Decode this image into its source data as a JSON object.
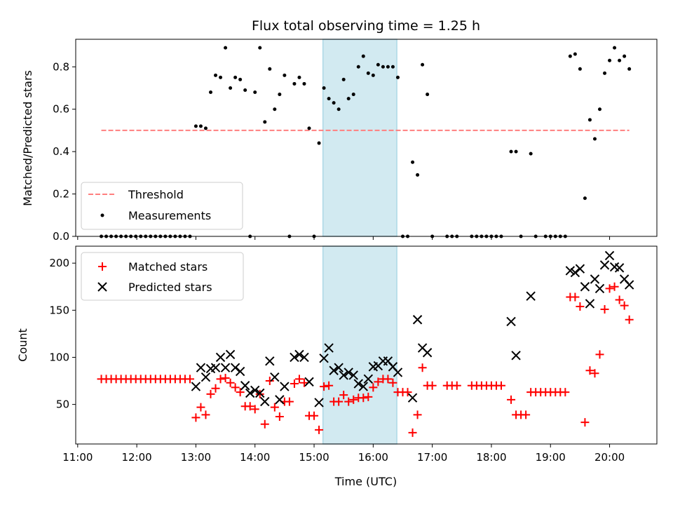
{
  "chart_data": {
    "title": "Flux total observing time = 1.25 h",
    "colors": {
      "threshold": "#ff7f7f",
      "measurements": "#000000",
      "matched": "#ff0000",
      "predicted": "#000000",
      "observing_window": "#add8e6"
    },
    "x_ticks": [
      "11:00",
      "12:00",
      "13:00",
      "14:00",
      "15:00",
      "16:00",
      "17:00",
      "18:00",
      "19:00",
      "20:00"
    ],
    "xlabel": "Time (UTC)",
    "xlim": [
      "10:58",
      "20:48"
    ],
    "observing_window": [
      "15:09",
      "16:24"
    ],
    "top": {
      "type": "scatter",
      "ylabel": "Matched/Predicted stars",
      "ylim": [
        0,
        0.93
      ],
      "y_ticks": [
        "0.0",
        "0.2",
        "0.4",
        "0.6",
        "0.8"
      ],
      "grid": false,
      "legend": "lower-left",
      "threshold": {
        "name": "Threshold",
        "y": 0.5,
        "x": [
          "11:24",
          "20:20"
        ],
        "style": "dashed"
      },
      "measurements": {
        "name": "Measurements",
        "points": [
          [
            "11:24",
            0
          ],
          [
            "11:29",
            0
          ],
          [
            "11:34",
            0
          ],
          [
            "11:39",
            0
          ],
          [
            "11:44",
            0
          ],
          [
            "11:49",
            0
          ],
          [
            "11:54",
            0
          ],
          [
            "11:59",
            0
          ],
          [
            "12:04",
            0
          ],
          [
            "12:09",
            0
          ],
          [
            "12:14",
            0
          ],
          [
            "12:19",
            0
          ],
          [
            "12:24",
            0
          ],
          [
            "12:29",
            0
          ],
          [
            "12:34",
            0
          ],
          [
            "12:39",
            0
          ],
          [
            "12:44",
            0
          ],
          [
            "12:49",
            0
          ],
          [
            "12:54",
            0
          ],
          [
            "13:00",
            0.52
          ],
          [
            "13:05",
            0.52
          ],
          [
            "13:10",
            0.51
          ],
          [
            "13:15",
            0.68
          ],
          [
            "13:20",
            0.76
          ],
          [
            "13:25",
            0.75
          ],
          [
            "13:30",
            0.89
          ],
          [
            "13:35",
            0.7
          ],
          [
            "13:40",
            0.75
          ],
          [
            "13:45",
            0.74
          ],
          [
            "13:50",
            0.69
          ],
          [
            "13:55",
            0
          ],
          [
            "14:00",
            0.68
          ],
          [
            "14:05",
            0.89
          ],
          [
            "14:10",
            0.54
          ],
          [
            "14:15",
            0.79
          ],
          [
            "14:20",
            0.6
          ],
          [
            "14:25",
            0.67
          ],
          [
            "14:30",
            0.76
          ],
          [
            "14:35",
            0
          ],
          [
            "14:40",
            0.72
          ],
          [
            "14:45",
            0.75
          ],
          [
            "14:50",
            0.72
          ],
          [
            "14:55",
            0.51
          ],
          [
            "15:00",
            0
          ],
          [
            "15:05",
            0.44
          ],
          [
            "15:10",
            0.7
          ],
          [
            "15:15",
            0.65
          ],
          [
            "15:20",
            0.63
          ],
          [
            "15:25",
            0.6
          ],
          [
            "15:30",
            0.74
          ],
          [
            "15:35",
            0.65
          ],
          [
            "15:40",
            0.67
          ],
          [
            "15:45",
            0.8
          ],
          [
            "15:50",
            0.85
          ],
          [
            "15:55",
            0.77
          ],
          [
            "16:00",
            0.76
          ],
          [
            "16:05",
            0.81
          ],
          [
            "16:10",
            0.8
          ],
          [
            "16:15",
            0.8
          ],
          [
            "16:20",
            0.8
          ],
          [
            "16:25",
            0.75
          ],
          [
            "16:30",
            0
          ],
          [
            "16:35",
            0
          ],
          [
            "16:40",
            0.35
          ],
          [
            "16:45",
            0.29
          ],
          [
            "16:50",
            0.81
          ],
          [
            "16:55",
            0.67
          ],
          [
            "17:00",
            0
          ],
          [
            "17:15",
            0
          ],
          [
            "17:20",
            0
          ],
          [
            "17:25",
            0
          ],
          [
            "17:40",
            0
          ],
          [
            "17:45",
            0
          ],
          [
            "17:50",
            0
          ],
          [
            "17:55",
            0
          ],
          [
            "18:00",
            0
          ],
          [
            "18:05",
            0
          ],
          [
            "18:10",
            0
          ],
          [
            "18:20",
            0.4
          ],
          [
            "18:25",
            0.4
          ],
          [
            "18:30",
            0
          ],
          [
            "18:40",
            0.39
          ],
          [
            "18:45",
            0
          ],
          [
            "18:55",
            0
          ],
          [
            "19:00",
            0
          ],
          [
            "19:05",
            0
          ],
          [
            "19:10",
            0
          ],
          [
            "19:15",
            0
          ],
          [
            "19:20",
            0.85
          ],
          [
            "19:25",
            0.86
          ],
          [
            "19:30",
            0.79
          ],
          [
            "19:35",
            0.18
          ],
          [
            "19:40",
            0.55
          ],
          [
            "19:45",
            0.46
          ],
          [
            "19:50",
            0.6
          ],
          [
            "19:55",
            0.77
          ],
          [
            "20:00",
            0.83
          ],
          [
            "20:05",
            0.89
          ],
          [
            "20:10",
            0.83
          ],
          [
            "20:15",
            0.85
          ],
          [
            "20:20",
            0.79
          ]
        ]
      }
    },
    "bottom": {
      "type": "scatter",
      "ylabel": "Count",
      "ylim": [
        8,
        218
      ],
      "y_ticks": [
        "50",
        "100",
        "150",
        "200"
      ],
      "grid": false,
      "legend": "upper-left",
      "matched": {
        "name": "Matched stars",
        "points": [
          [
            "11:24",
            77
          ],
          [
            "11:29",
            77
          ],
          [
            "11:34",
            77
          ],
          [
            "11:39",
            77
          ],
          [
            "11:44",
            77
          ],
          [
            "11:49",
            77
          ],
          [
            "11:54",
            77
          ],
          [
            "11:59",
            77
          ],
          [
            "12:04",
            77
          ],
          [
            "12:09",
            77
          ],
          [
            "12:14",
            77
          ],
          [
            "12:19",
            77
          ],
          [
            "12:24",
            77
          ],
          [
            "12:29",
            77
          ],
          [
            "12:34",
            77
          ],
          [
            "12:39",
            77
          ],
          [
            "12:44",
            77
          ],
          [
            "12:49",
            77
          ],
          [
            "12:54",
            77
          ],
          [
            "13:00",
            36
          ],
          [
            "13:05",
            47
          ],
          [
            "13:10",
            39
          ],
          [
            "13:15",
            61
          ],
          [
            "13:20",
            67
          ],
          [
            "13:25",
            77
          ],
          [
            "13:30",
            78
          ],
          [
            "13:35",
            73
          ],
          [
            "13:40",
            68
          ],
          [
            "13:45",
            63
          ],
          [
            "13:50",
            48
          ],
          [
            "13:55",
            48
          ],
          [
            "14:00",
            45
          ],
          [
            "14:05",
            61
          ],
          [
            "14:10",
            29
          ],
          [
            "14:15",
            75
          ],
          [
            "14:20",
            47
          ],
          [
            "14:25",
            37
          ],
          [
            "14:30",
            53
          ],
          [
            "14:35",
            53
          ],
          [
            "14:40",
            72
          ],
          [
            "14:45",
            77
          ],
          [
            "14:50",
            73
          ],
          [
            "14:55",
            38
          ],
          [
            "15:00",
            38
          ],
          [
            "15:05",
            23
          ],
          [
            "15:10",
            69
          ],
          [
            "15:15",
            70
          ],
          [
            "15:20",
            53
          ],
          [
            "15:25",
            53
          ],
          [
            "15:30",
            60
          ],
          [
            "15:35",
            53
          ],
          [
            "15:40",
            55
          ],
          [
            "15:45",
            57
          ],
          [
            "15:50",
            57
          ],
          [
            "15:55",
            58
          ],
          [
            "16:00",
            68
          ],
          [
            "16:05",
            74
          ],
          [
            "16:10",
            77
          ],
          [
            "16:15",
            77
          ],
          [
            "16:20",
            73
          ],
          [
            "16:25",
            63
          ],
          [
            "16:30",
            63
          ],
          [
            "16:35",
            63
          ],
          [
            "16:40",
            20
          ],
          [
            "16:45",
            39
          ],
          [
            "16:50",
            89
          ],
          [
            "16:55",
            70
          ],
          [
            "17:00",
            70
          ],
          [
            "17:15",
            70
          ],
          [
            "17:20",
            70
          ],
          [
            "17:25",
            70
          ],
          [
            "17:40",
            70
          ],
          [
            "17:45",
            70
          ],
          [
            "17:50",
            70
          ],
          [
            "17:55",
            70
          ],
          [
            "18:00",
            70
          ],
          [
            "18:05",
            70
          ],
          [
            "18:10",
            70
          ],
          [
            "18:20",
            55
          ],
          [
            "18:25",
            39
          ],
          [
            "18:30",
            39
          ],
          [
            "18:35",
            39
          ],
          [
            "18:40",
            63
          ],
          [
            "18:45",
            63
          ],
          [
            "18:50",
            63
          ],
          [
            "18:55",
            63
          ],
          [
            "19:00",
            63
          ],
          [
            "19:05",
            63
          ],
          [
            "19:10",
            63
          ],
          [
            "19:15",
            63
          ],
          [
            "19:20",
            164
          ],
          [
            "19:25",
            164
          ],
          [
            "19:30",
            154
          ],
          [
            "19:35",
            31
          ],
          [
            "19:40",
            86
          ],
          [
            "19:45",
            83
          ],
          [
            "19:50",
            103
          ],
          [
            "19:55",
            151
          ],
          [
            "20:00",
            173
          ],
          [
            "20:05",
            175
          ],
          [
            "20:10",
            161
          ],
          [
            "20:15",
            155
          ],
          [
            "20:20",
            140
          ]
        ]
      },
      "predicted": {
        "name": "Predicted stars",
        "points": [
          [
            "13:00",
            69
          ],
          [
            "13:05",
            89
          ],
          [
            "13:10",
            79
          ],
          [
            "13:15",
            88
          ],
          [
            "13:20",
            89
          ],
          [
            "13:25",
            100
          ],
          [
            "13:30",
            89
          ],
          [
            "13:35",
            103
          ],
          [
            "13:40",
            89
          ],
          [
            "13:45",
            85
          ],
          [
            "13:50",
            70
          ],
          [
            "13:55",
            62
          ],
          [
            "14:00",
            65
          ],
          [
            "14:05",
            62
          ],
          [
            "14:10",
            53
          ],
          [
            "14:15",
            96
          ],
          [
            "14:20",
            79
          ],
          [
            "14:25",
            55
          ],
          [
            "14:30",
            69
          ],
          [
            "14:40",
            100
          ],
          [
            "14:45",
            103
          ],
          [
            "14:50",
            100
          ],
          [
            "14:55",
            74
          ],
          [
            "15:05",
            52
          ],
          [
            "15:10",
            99
          ],
          [
            "15:15",
            110
          ],
          [
            "15:20",
            86
          ],
          [
            "15:25",
            89
          ],
          [
            "15:30",
            81
          ],
          [
            "15:35",
            84
          ],
          [
            "15:40",
            81
          ],
          [
            "15:45",
            72
          ],
          [
            "15:50",
            69
          ],
          [
            "15:55",
            77
          ],
          [
            "16:00",
            90
          ],
          [
            "16:05",
            91
          ],
          [
            "16:10",
            96
          ],
          [
            "16:15",
            96
          ],
          [
            "16:20",
            90
          ],
          [
            "16:25",
            84
          ],
          [
            "16:40",
            57
          ],
          [
            "16:45",
            140
          ],
          [
            "16:50",
            110
          ],
          [
            "16:55",
            105
          ],
          [
            "18:20",
            138
          ],
          [
            "18:25",
            102
          ],
          [
            "18:40",
            165
          ],
          [
            "19:20",
            192
          ],
          [
            "19:25",
            190
          ],
          [
            "19:30",
            194
          ],
          [
            "19:35",
            175
          ],
          [
            "19:40",
            157
          ],
          [
            "19:45",
            183
          ],
          [
            "19:50",
            173
          ],
          [
            "19:55",
            198
          ],
          [
            "20:00",
            208
          ],
          [
            "20:05",
            196
          ],
          [
            "20:10",
            195
          ],
          [
            "20:15",
            183
          ],
          [
            "20:20",
            177
          ]
        ]
      }
    }
  }
}
